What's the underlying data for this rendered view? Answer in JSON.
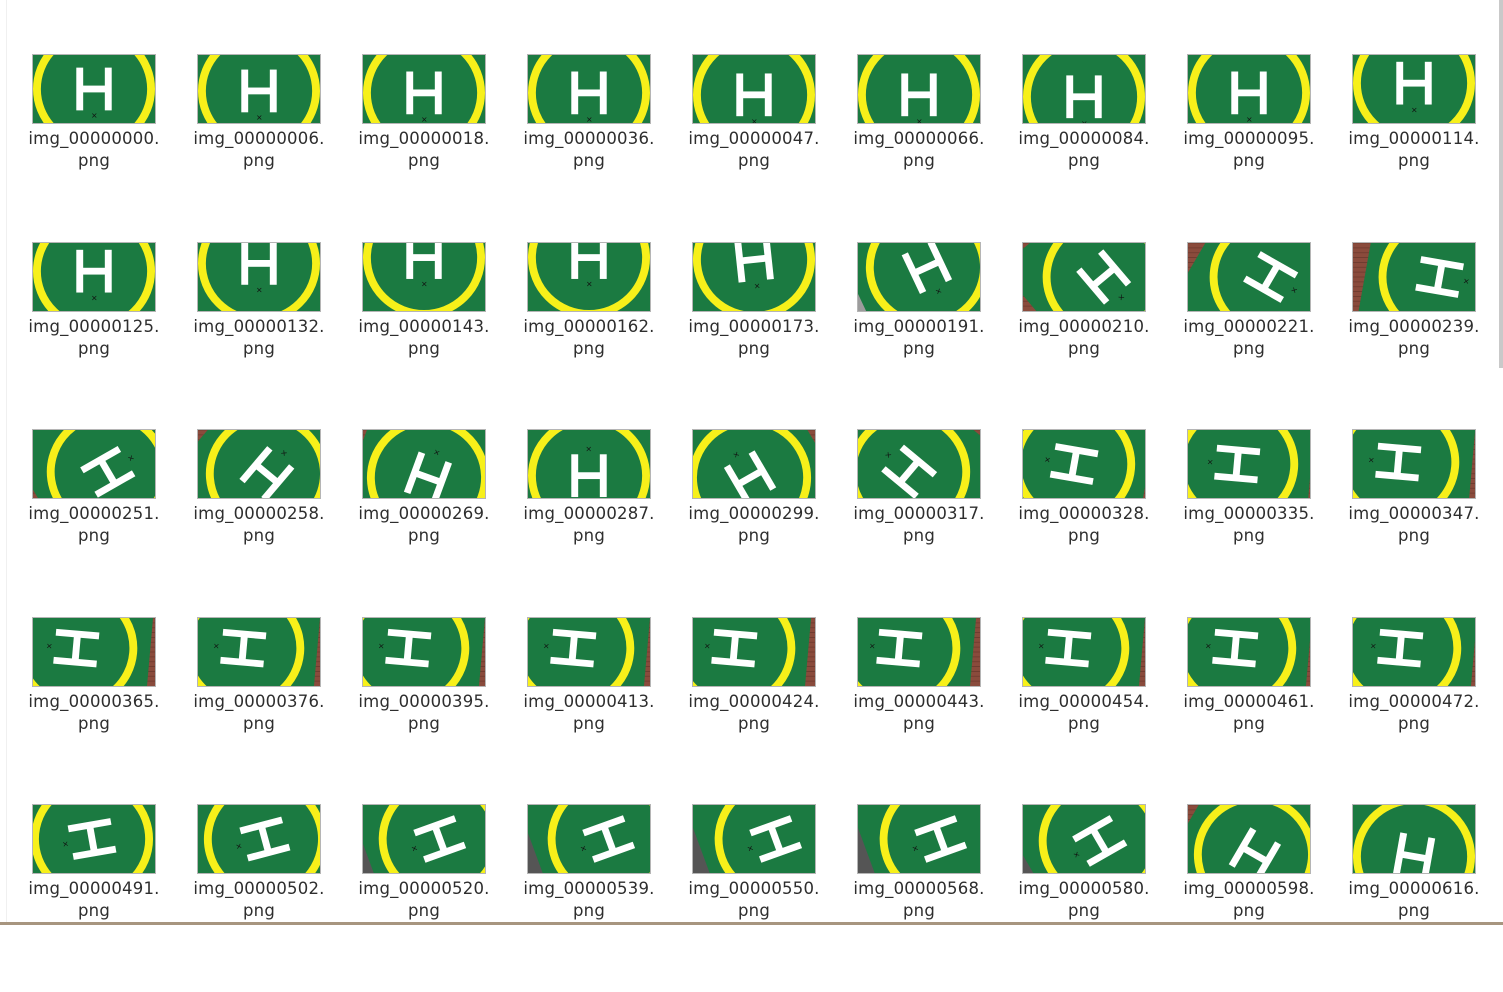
{
  "files": [
    {
      "name": "img_00000000.",
      "ext": "png",
      "angle": 0,
      "dx": 0,
      "dy": 0,
      "bg": "gray"
    },
    {
      "name": "img_00000006.",
      "ext": "png",
      "angle": 0,
      "dx": 0,
      "dy": 2,
      "bg": "gray"
    },
    {
      "name": "img_00000018.",
      "ext": "png",
      "angle": 0,
      "dx": 0,
      "dy": 4,
      "bg": "gray"
    },
    {
      "name": "img_00000036.",
      "ext": "png",
      "angle": 0,
      "dx": 0,
      "dy": 4,
      "bg": "gray"
    },
    {
      "name": "img_00000047.",
      "ext": "png",
      "angle": 0,
      "dx": 0,
      "dy": 6,
      "bg": "gray"
    },
    {
      "name": "img_00000066.",
      "ext": "png",
      "angle": 0,
      "dx": 0,
      "dy": 6,
      "bg": "gray"
    },
    {
      "name": "img_00000084.",
      "ext": "png",
      "angle": 0,
      "dx": 0,
      "dy": 8,
      "bg": "gray"
    },
    {
      "name": "img_00000095.",
      "ext": "png",
      "angle": 0,
      "dx": 0,
      "dy": 4,
      "bg": "gray"
    },
    {
      "name": "img_00000114.",
      "ext": "png",
      "angle": 0,
      "dx": 0,
      "dy": -6,
      "bg": "gray"
    },
    {
      "name": "img_00000125.",
      "ext": "png",
      "angle": 0,
      "dx": 0,
      "dy": -6,
      "bg": "gray"
    },
    {
      "name": "img_00000132.",
      "ext": "png",
      "angle": 0,
      "dx": 0,
      "dy": -14,
      "bg": "gray"
    },
    {
      "name": "img_00000143.",
      "ext": "png",
      "angle": 0,
      "dx": 0,
      "dy": -20,
      "bg": "gray"
    },
    {
      "name": "img_00000162.",
      "ext": "png",
      "angle": 0,
      "dx": 0,
      "dy": -20,
      "bg": "gray"
    },
    {
      "name": "img_00000173.",
      "ext": "png",
      "angle": -6,
      "dx": 0,
      "dy": -18,
      "bg": "gray"
    },
    {
      "name": "img_00000191.",
      "ext": "png",
      "angle": -25,
      "dx": 8,
      "dy": -10,
      "bg": "gray"
    },
    {
      "name": "img_00000210.",
      "ext": "png",
      "angle": -40,
      "dx": 20,
      "dy": 0,
      "bg": "brick"
    },
    {
      "name": "img_00000221.",
      "ext": "png",
      "angle": -60,
      "dx": 22,
      "dy": 0,
      "bg": "brick"
    },
    {
      "name": "img_00000239.",
      "ext": "png",
      "angle": -80,
      "dx": 26,
      "dy": 0,
      "bg": "brick"
    },
    {
      "name": "img_00000251.",
      "ext": "png",
      "angle": -120,
      "dx": 14,
      "dy": 8,
      "bg": "brick"
    },
    {
      "name": "img_00000258.",
      "ext": "png",
      "angle": -140,
      "dx": 8,
      "dy": 10,
      "bg": "brick"
    },
    {
      "name": "img_00000269.",
      "ext": "png",
      "angle": -160,
      "dx": 4,
      "dy": 14,
      "bg": "brick"
    },
    {
      "name": "img_00000287.",
      "ext": "png",
      "angle": 180,
      "dx": 0,
      "dy": 12,
      "bg": "gray"
    },
    {
      "name": "img_00000299.",
      "ext": "png",
      "angle": 150,
      "dx": -4,
      "dy": 14,
      "bg": "brick"
    },
    {
      "name": "img_00000317.",
      "ext": "png",
      "angle": 130,
      "dx": -10,
      "dy": 8,
      "bg": "brick"
    },
    {
      "name": "img_00000328.",
      "ext": "png",
      "angle": 100,
      "dx": -10,
      "dy": 0,
      "bg": "brick"
    },
    {
      "name": "img_00000335.",
      "ext": "png",
      "angle": 95,
      "dx": -12,
      "dy": 0,
      "bg": "brick"
    },
    {
      "name": "img_00000347.",
      "ext": "png",
      "angle": 95,
      "dx": -16,
      "dy": -2,
      "bg": "brick"
    },
    {
      "name": "img_00000365.",
      "ext": "png",
      "angle": 95,
      "dx": -18,
      "dy": -4,
      "bg": "brick"
    },
    {
      "name": "img_00000376.",
      "ext": "png",
      "angle": 95,
      "dx": -16,
      "dy": -4,
      "bg": "brick"
    },
    {
      "name": "img_00000395.",
      "ext": "png",
      "angle": 95,
      "dx": -16,
      "dy": -4,
      "bg": "brick"
    },
    {
      "name": "img_00000413.",
      "ext": "png",
      "angle": 95,
      "dx": -16,
      "dy": -4,
      "bg": "brick"
    },
    {
      "name": "img_00000424.",
      "ext": "png",
      "angle": 95,
      "dx": -20,
      "dy": -4,
      "bg": "brick"
    },
    {
      "name": "img_00000443.",
      "ext": "png",
      "angle": 95,
      "dx": -20,
      "dy": -4,
      "bg": "brick"
    },
    {
      "name": "img_00000454.",
      "ext": "png",
      "angle": 95,
      "dx": -16,
      "dy": -4,
      "bg": "brick"
    },
    {
      "name": "img_00000461.",
      "ext": "png",
      "angle": 95,
      "dx": -14,
      "dy": -4,
      "bg": "brick"
    },
    {
      "name": "img_00000472.",
      "ext": "png",
      "angle": 95,
      "dx": -14,
      "dy": -4,
      "bg": "brick"
    },
    {
      "name": "img_00000491.",
      "ext": "png",
      "angle": 80,
      "dx": -2,
      "dy": 0,
      "bg": "gray"
    },
    {
      "name": "img_00000502.",
      "ext": "png",
      "angle": 75,
      "dx": 6,
      "dy": 0,
      "bg": "dark"
    },
    {
      "name": "img_00000520.",
      "ext": "png",
      "angle": 70,
      "dx": 16,
      "dy": 0,
      "bg": "dark"
    },
    {
      "name": "img_00000539.",
      "ext": "png",
      "angle": 70,
      "dx": 20,
      "dy": 0,
      "bg": "dark"
    },
    {
      "name": "img_00000550.",
      "ext": "png",
      "angle": 70,
      "dx": 22,
      "dy": 0,
      "bg": "dark"
    },
    {
      "name": "img_00000568.",
      "ext": "png",
      "angle": 70,
      "dx": 22,
      "dy": 0,
      "bg": "dark"
    },
    {
      "name": "img_00000580.",
      "ext": "png",
      "angle": 60,
      "dx": 16,
      "dy": 2,
      "bg": "dark"
    },
    {
      "name": "img_00000598.",
      "ext": "png",
      "angle": 30,
      "dx": 6,
      "dy": 16,
      "bg": "brick"
    },
    {
      "name": "img_00000616.",
      "ext": "png",
      "angle": 10,
      "dx": 0,
      "dy": 18,
      "bg": "brick"
    }
  ],
  "colors": {
    "pad_green": "#1b7a41",
    "ring_yellow": "#f7f01a",
    "h_white": "#ffffff",
    "ground_gray": "#9c9c9c",
    "brick": "#8a4b3c",
    "dark_roof": "#555555"
  },
  "icons": {
    "thumbnail": "helipad-image-thumbnail-icon"
  }
}
